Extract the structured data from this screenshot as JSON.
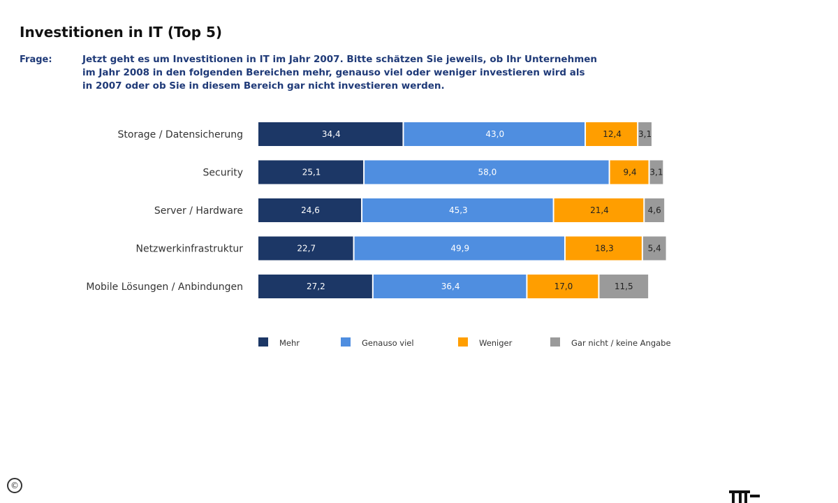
{
  "title": "Investitionen in IT (Top 5)",
  "question": {
    "label": "Frage:",
    "lines": [
      "Jetzt geht es um Investitionen in IT im Jahr 2007. Bitte schätzen Sie jeweils, ob Ihr Unternehmen",
      "im Jahr 2008 in den folgenden Bereichen mehr, genauso viel oder weniger investieren wird als",
      "in 2007 oder ob Sie in diesem Bereich gar nicht investieren werden."
    ]
  },
  "chart_data": {
    "type": "bar",
    "orientation": "horizontal",
    "stacked": true,
    "categories": [
      "Storage / Datensicherung",
      "Security",
      "Server / Hardware",
      "Netzwerkinfrastruktur",
      "Mobile Lösungen / Anbindungen"
    ],
    "series": [
      {
        "name": "Mehr",
        "color": "#1c3766",
        "label_color": "#ffffff",
        "values": [
          34.4,
          25.1,
          24.6,
          22.7,
          27.2
        ],
        "labels": [
          "34,4",
          "25,1",
          "24,6",
          "22,7",
          "27,2"
        ]
      },
      {
        "name": "Genauso viel",
        "color": "#4f8ee0",
        "label_color": "#ffffff",
        "values": [
          43.0,
          58.0,
          45.3,
          49.9,
          36.4
        ],
        "labels": [
          "43,0",
          "58,0",
          "45,3",
          "49,9",
          "36,4"
        ]
      },
      {
        "name": "Weniger",
        "color": "#ff9e00",
        "label_color": "#222222",
        "values": [
          12.4,
          9.4,
          21.4,
          18.3,
          17.0
        ],
        "labels": [
          "12,4",
          "9,4",
          "21,4",
          "18,3",
          "17,0"
        ]
      },
      {
        "name": "Gar nicht / keine Angabe",
        "color": "#9a9a9a",
        "label_color": "#222222",
        "values": [
          3.1,
          3.1,
          4.6,
          5.4,
          11.5
        ],
        "labels": [
          "3,1",
          "3,1",
          "4,6",
          "5,4",
          "11,5"
        ]
      }
    ],
    "xlim": [
      0,
      100
    ],
    "grid": false,
    "legend": "bottom"
  },
  "footer": {
    "copyright_symbol": "©",
    "logo_text": "IT"
  }
}
